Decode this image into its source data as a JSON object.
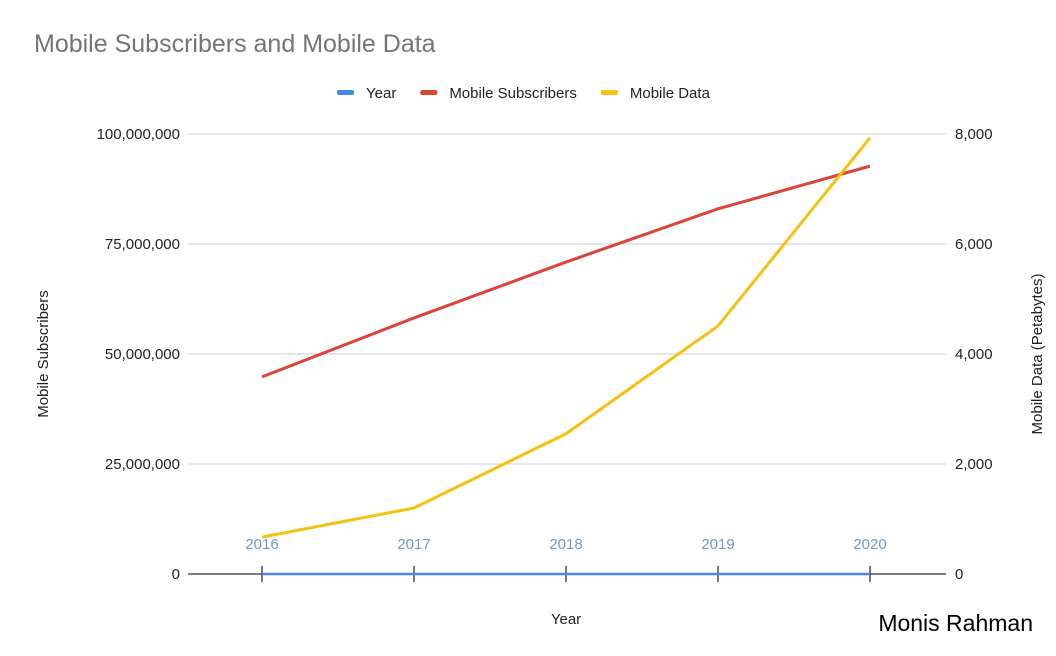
{
  "chart_data": {
    "type": "line",
    "title": "Mobile Subscribers and Mobile Data",
    "xlabel": "Year",
    "ylabel_left": "Mobile Subscribers",
    "ylabel_right": "Mobile Data (Petabytes)",
    "categories": [
      "2016",
      "2017",
      "2018",
      "2019",
      "2020"
    ],
    "ylim_left": [
      0,
      100000000
    ],
    "ylim_right": [
      0,
      8000
    ],
    "yticks_left": [
      "0",
      "25,000,000",
      "50,000,000",
      "75,000,000",
      "100,000,000"
    ],
    "yticks_right": [
      "0",
      "2,000",
      "4,000",
      "6,000",
      "8,000"
    ],
    "grid": true,
    "legend_position": "top",
    "series": [
      {
        "name": "Year",
        "axis": "left",
        "color": "#4a86e8",
        "values": [
          2016,
          2017,
          2018,
          2019,
          2020
        ],
        "data_labels": [
          "2016",
          "2017",
          "2018",
          "2019",
          "2020"
        ]
      },
      {
        "name": "Mobile Subscribers",
        "axis": "left",
        "color": "#db4437",
        "values": [
          44800000,
          58200000,
          70900000,
          83000000,
          92700000
        ]
      },
      {
        "name": "Mobile Data",
        "axis": "right",
        "color": "#f4c20d",
        "values": [
          670,
          1200,
          2550,
          4510,
          7930
        ]
      }
    ]
  },
  "credit": "Monis Rahman"
}
